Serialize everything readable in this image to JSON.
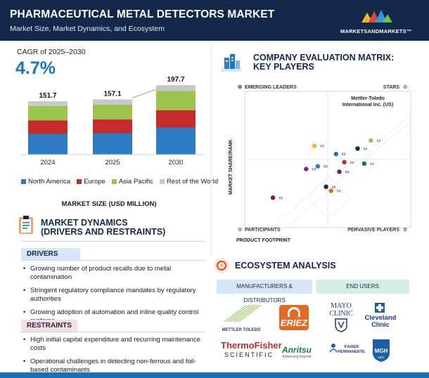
{
  "header": {
    "title": "PHARMACEUTICAL METAL DETECTORS MARKET",
    "subtitle": "Market Size, Market Dynamics, and Ecosystem",
    "logo_text": "MARKETSANDMARKETS™"
  },
  "cagr": {
    "label": "CAGR of 2025–2030",
    "value": "4.7%"
  },
  "chart_data": {
    "type": "bar",
    "stacked": true,
    "categories": [
      "2024",
      "2025",
      "2030"
    ],
    "totals": [
      "151.7",
      "157.1",
      "197.7"
    ],
    "series": [
      {
        "name": "North America",
        "color": "#2e7bc4",
        "values": [
          59,
          61,
          77
        ]
      },
      {
        "name": "Europe",
        "color": "#c62b2b",
        "values": [
          38,
          39,
          49
        ]
      },
      {
        "name": "Asia Pacific",
        "color": "#9cc44c",
        "values": [
          41,
          42,
          55
        ]
      },
      {
        "name": "Rest of the World",
        "color": "#c8c8c8",
        "values": [
          13.7,
          15.1,
          16.7
        ]
      }
    ],
    "xlabel": "MARKET SIZE (USD MILLION)",
    "legend": "bottom"
  },
  "market_dynamics": {
    "title_line1": "MARKET DYNAMICS",
    "title_line2": "(DRIVERS AND RESTRAINTS)",
    "drivers_label": "DRIVERS",
    "drivers": [
      "Growing number of product recalls due to metal contamination",
      "Stringent regulatory compliance mandates by regulatory authorities",
      "Growing adoption of automation and inline quality control systems"
    ],
    "restraints_label": "RESTRAINTS",
    "restraints": [
      "High initial capital expenditure and recurring maintenance costs",
      "Operational challenges in detecting non-ferrous and foil-based contaminants"
    ]
  },
  "matrix": {
    "title_line1": "COMPANY EVALUATION MATRIX:",
    "title_line2": "KEY PLAYERS",
    "quadrants": {
      "top_left": "EMERGING LEADERS",
      "top_right": "STARS",
      "bottom_left": "PARTICIPANTS",
      "bottom_right": "PERVASIVE PLAYERS"
    },
    "y_axis": "MARKET SHARE/RANK",
    "x_axis": "PRODUCT FOOTPRINT",
    "leader_label_line1": "Mettler-Toledo",
    "leader_label_line2": "International Inc. (US)",
    "points": [
      {
        "x": 0.76,
        "y": 0.64,
        "color": "#9cc44c",
        "label": "xx"
      },
      {
        "x": 0.68,
        "y": 0.58,
        "color": "#13284a",
        "label": "xx"
      },
      {
        "x": 0.42,
        "y": 0.6,
        "color": "#f3b71d",
        "label": "xx"
      },
      {
        "x": 0.55,
        "y": 0.54,
        "color": "#1777c2",
        "label": "xx"
      },
      {
        "x": 0.6,
        "y": 0.48,
        "color": "#c62b2b",
        "label": "xx"
      },
      {
        "x": 0.72,
        "y": 0.47,
        "color": "#1b6d55",
        "label": "xx"
      },
      {
        "x": 0.37,
        "y": 0.43,
        "color": "#6a2c7f",
        "label": "xx"
      },
      {
        "x": 0.44,
        "y": 0.45,
        "color": "#2e7bc4",
        "label": "xx"
      },
      {
        "x": 0.57,
        "y": 0.41,
        "color": "#7a1f45",
        "label": "xx"
      },
      {
        "x": 0.49,
        "y": 0.3,
        "color": "#13284a",
        "label": "xx"
      },
      {
        "x": 0.52,
        "y": 0.27,
        "color": "#d9741f",
        "label": "xx"
      },
      {
        "x": 0.17,
        "y": 0.22,
        "color": "#8b1a1a",
        "label": "xx"
      }
    ]
  },
  "ecosystem": {
    "title": "ECOSYSTEM ANALYSIS",
    "tab_manufacturers": "MANUFACTURERS & DISTRIBUTORS",
    "tab_end_users": "END USERS",
    "logos": {
      "mettler": "METTLER TOLEDO",
      "eriez": "ERIEZ",
      "thermo_line1": "ThermoFisher",
      "thermo_line2": "SCIENTIFIC",
      "anritsu": "Anritsu",
      "anritsu_sub": "Advancing beyond",
      "mayo_line1": "MAYO",
      "mayo_line2": "CLINIC",
      "cleveland_line1": "Cleveland",
      "cleveland_line2": "Clinic",
      "kaiser_line1": "KAISER",
      "kaiser_line2": "PERMANENTE.",
      "mgh": "MGH",
      "mgh_year": "1811"
    }
  }
}
